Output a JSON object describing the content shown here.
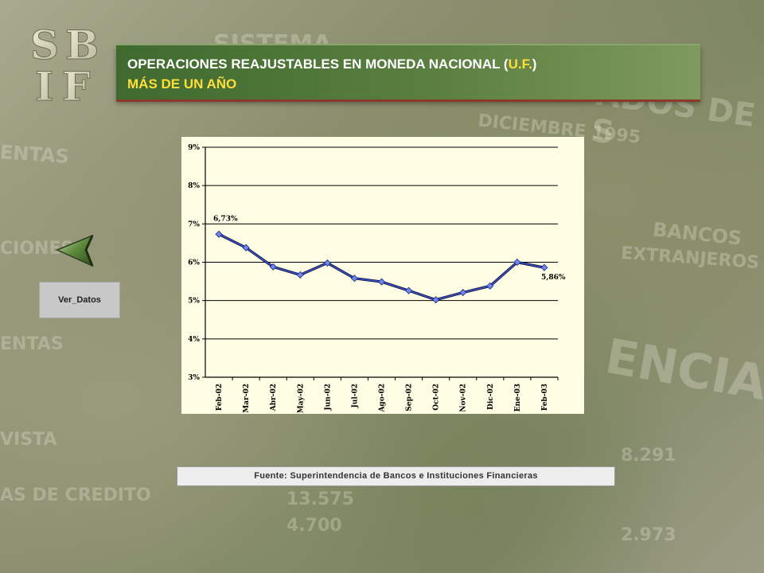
{
  "header": {
    "logo_text": "SBIF",
    "title_line1_pre": "OPERACIONES REAJUSTABLES EN MONEDA NACIONAL (",
    "title_line1_accent": "U.F.",
    "title_line1_post": ")",
    "title_line2": "MÁS DE UN AÑO"
  },
  "nav": {
    "back_icon": "back-arrow-icon",
    "ver_datos_label": "Ver_Datos"
  },
  "chart_data": {
    "type": "line",
    "categories": [
      "Feb-02",
      "Mar-02",
      "Abr-02",
      "May-02",
      "Jun-02",
      "Jul-02",
      "Ago-02",
      "Sep-02",
      "Oct-02",
      "Nov-02",
      "Dic-02",
      "Ene-03",
      "Feb-03"
    ],
    "series": [
      {
        "values": [
          6.73,
          6.38,
          5.88,
          5.67,
          5.98,
          5.58,
          5.49,
          5.26,
          5.02,
          5.21,
          5.38,
          6.0,
          5.86
        ],
        "color": "#3b55c8"
      }
    ],
    "ylim": [
      3,
      9
    ],
    "yticks": [
      "3%",
      "4%",
      "5%",
      "6%",
      "7%",
      "8%",
      "9%"
    ],
    "annotations": [
      {
        "index": 0,
        "text": "6,73%"
      },
      {
        "index": 12,
        "text": "5,86%"
      }
    ],
    "grid": true,
    "background": "#fffde4"
  },
  "footer": {
    "source": "Fuente:  Superintendencia  de  Bancos  e  Instituciones  Financieras"
  }
}
